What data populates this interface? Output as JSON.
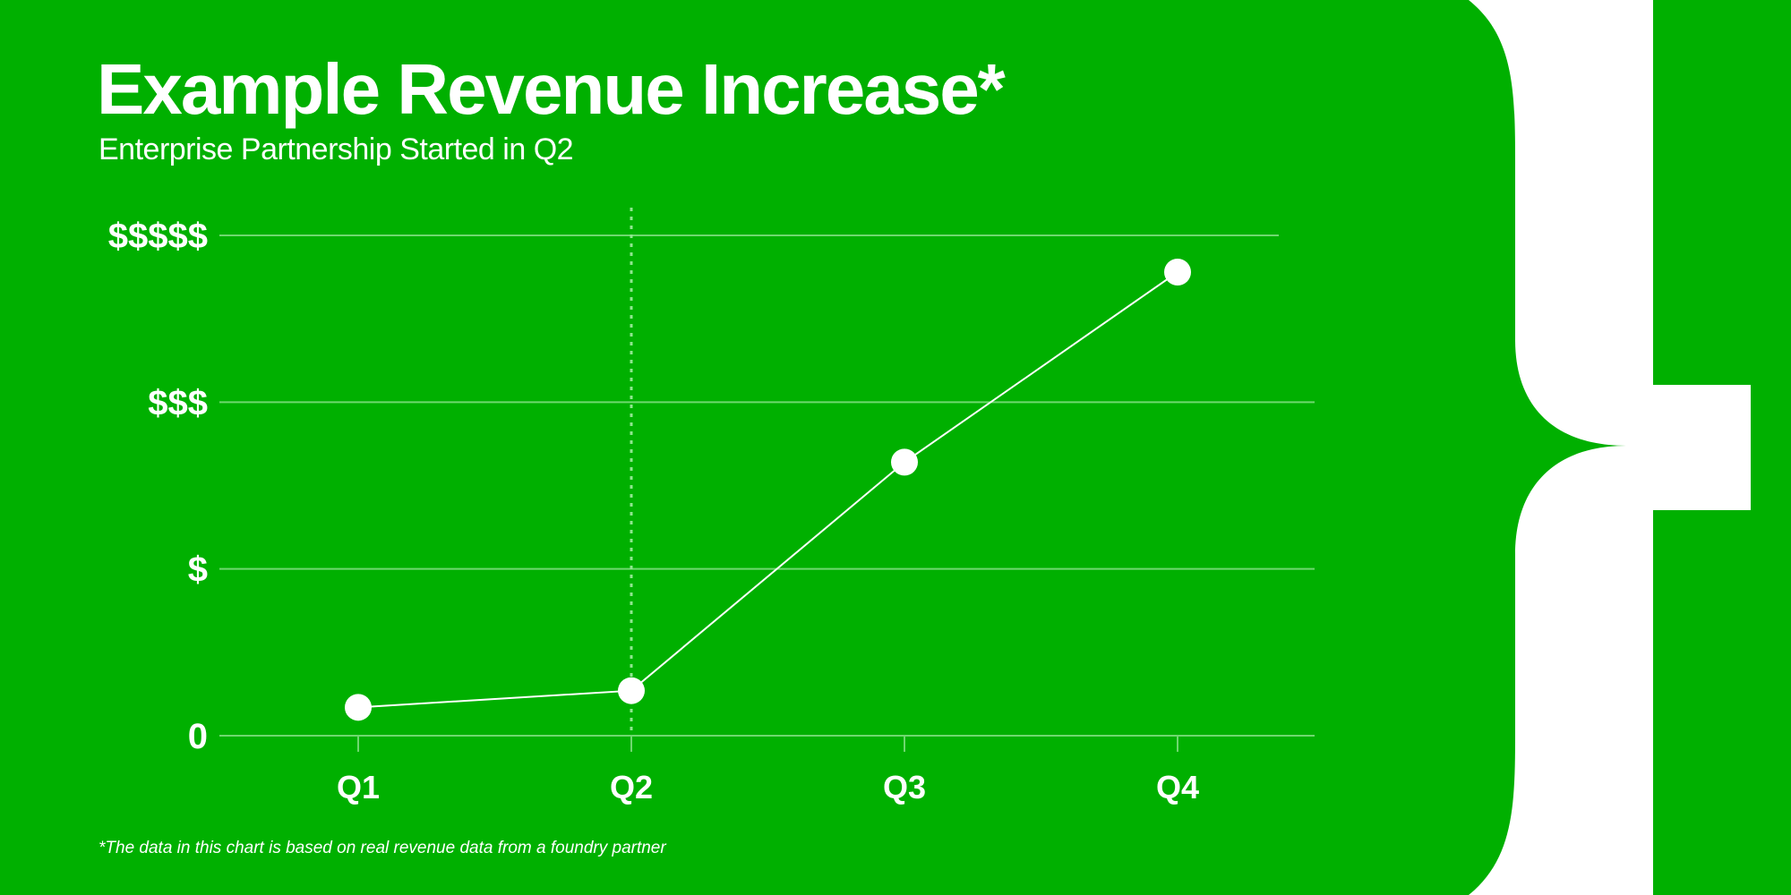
{
  "colors": {
    "background": "#00b000",
    "foreground": "#ffffff",
    "gridline": "#6fd86f",
    "marker_line": "#8fe68f"
  },
  "decoration": {
    "icon": "closing-curly-brace-icon"
  },
  "chart_data": {
    "type": "line",
    "title": "Example Revenue Increase*",
    "subtitle": "Enterprise Partnership Started in Q2",
    "footnote": "*The data in this chart is based on real revenue data from a foundry partner",
    "xlabel": "",
    "ylabel": "",
    "categories": [
      "Q1",
      "Q2",
      "Q3",
      "Q4"
    ],
    "series": [
      {
        "values": [
          0.17,
          0.27,
          1.64,
          2.78
        ]
      }
    ],
    "y_ticks": [
      {
        "value": 0,
        "label": "0"
      },
      {
        "value": 1,
        "label": "$"
      },
      {
        "value": 2,
        "label": "$$$"
      },
      {
        "value": 3,
        "label": "$$$$$"
      }
    ],
    "ylim": [
      0,
      3
    ],
    "grid": true,
    "legend": "none",
    "annotations": [
      {
        "type": "vertical-dotted-line",
        "x": "Q2"
      }
    ]
  }
}
